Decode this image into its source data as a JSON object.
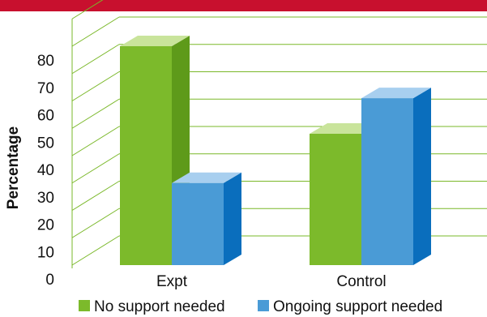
{
  "chart_data": {
    "type": "bar",
    "title": "",
    "xlabel": "",
    "ylabel": "Percentage",
    "categories": [
      "Expt",
      "Control"
    ],
    "series": [
      {
        "name": "No support needed",
        "values": [
          80,
          48
        ],
        "color": "#7cba2b",
        "color_light": "#c9e49b",
        "color_dark": "#5e9a1a"
      },
      {
        "name": "Ongoing support needed",
        "values": [
          30,
          61
        ],
        "color": "#4a9bd6",
        "color_light": "#a8cfef",
        "color_dark": "#0a6ebd"
      }
    ],
    "ylim": [
      0,
      80
    ],
    "yticks": [
      0,
      10,
      20,
      30,
      40,
      50,
      60,
      70,
      80
    ],
    "grid": true,
    "three_d": true,
    "legend_position": "bottom"
  },
  "colors": {
    "band": "#c8102e",
    "grid": "#7ab829"
  }
}
